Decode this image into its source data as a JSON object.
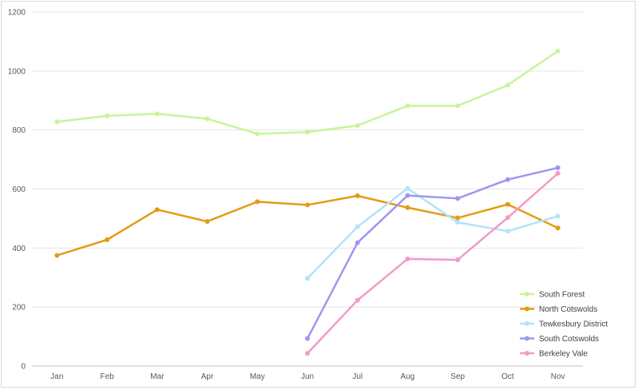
{
  "chart_data": {
    "type": "line",
    "title": "",
    "xlabel": "",
    "ylabel": "",
    "ylim": [
      0,
      1200
    ],
    "yticks": [
      0,
      200,
      400,
      600,
      800,
      1000,
      1200
    ],
    "grid": "horizontal",
    "legend": "bottom-right",
    "categories": [
      "Jan",
      "Feb",
      "Mar",
      "Apr",
      "May",
      "Jun",
      "Jul",
      "Aug",
      "Sep",
      "Oct",
      "Nov"
    ],
    "series": [
      {
        "name": "South Forest",
        "color": "#c6f59a",
        "values": [
          828,
          848,
          855,
          838,
          787,
          793,
          815,
          882,
          882,
          952,
          1068
        ]
      },
      {
        "name": "North Cotswolds",
        "color": "#e39c12",
        "values": [
          375,
          428,
          530,
          490,
          557,
          546,
          577,
          537,
          502,
          548,
          468
        ]
      },
      {
        "name": "Tewkesbury District",
        "color": "#b3e3f7",
        "values": [
          null,
          null,
          null,
          null,
          null,
          297,
          472,
          602,
          487,
          457,
          508
        ]
      },
      {
        "name": "South Cotswolds",
        "color": "#9b97f2",
        "values": [
          null,
          null,
          null,
          null,
          null,
          93,
          418,
          578,
          568,
          632,
          672
        ]
      },
      {
        "name": "Berkeley Vale",
        "color": "#f29ac8",
        "values": [
          null,
          null,
          null,
          null,
          null,
          43,
          223,
          363,
          360,
          503,
          653
        ]
      }
    ]
  }
}
